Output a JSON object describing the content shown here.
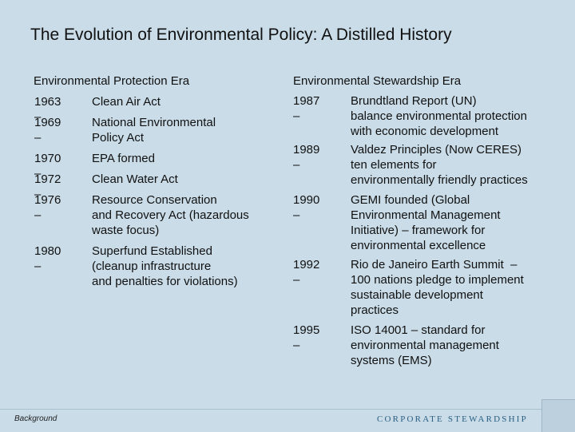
{
  "title": "The Evolution of Environmental Policy: A Distilled History",
  "left": {
    "heading": "Environmental Protection Era",
    "entries": [
      {
        "year": "1963 –",
        "text": "Clean Air Act"
      },
      {
        "year": "1969 –",
        "text": "National Environmental\nPolicy Act"
      },
      {
        "year": "1970 –",
        "text": "EPA formed"
      },
      {
        "year": "1972 –",
        "text": "Clean Water Act"
      },
      {
        "year": "1976 –",
        "text": "Resource Conservation\nand Recovery Act (hazardous\nwaste focus)"
      },
      {
        "year": "1980 –",
        "text": "Superfund Established\n(cleanup infrastructure\nand penalties for violations)"
      }
    ]
  },
  "right": {
    "heading": "Environmental Stewardship Era",
    "entries": [
      {
        "year": "1987 –",
        "text": "Brundtland Report (UN)\nbalance environmental protection\nwith economic development"
      },
      {
        "year": "1989 –",
        "text": "Valdez Principles (Now CERES)\nten elements for\nenvironmentally friendly practices"
      },
      {
        "year": "1990 –",
        "text": "GEMI founded (Global\nEnvironmental Management\nInitiative) – framework for\nenvironmental excellence"
      },
      {
        "year": "1992 –",
        "text": "Rio de Janeiro Earth Summit  –\n100 nations pledge to implement\nsustainable development\npractices"
      },
      {
        "year": "1995 –",
        "text": "ISO 14001 – standard for\nenvironmental management\nsystems (EMS)"
      }
    ]
  },
  "footer": {
    "section": "Background",
    "brand": "CORPORATE STEWARDSHIP"
  }
}
